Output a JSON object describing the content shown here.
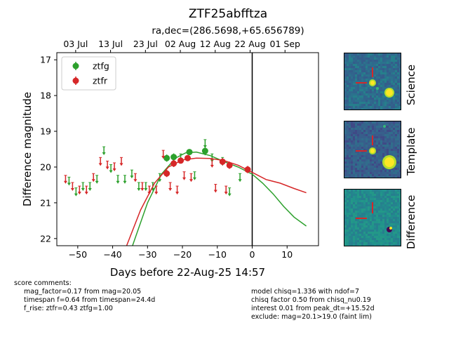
{
  "title": "ZTF25abfftza",
  "subtitle": "ra,dec=(286.5698,+65.656789)",
  "chart_data": {
    "type": "scatter",
    "xlabel": "Days before 22-Aug-25 14:57",
    "ylabel": "Difference magnitude",
    "xlim": [
      -56,
      19
    ],
    "ylim": [
      22.2,
      16.8
    ],
    "y_inverted": true,
    "xticks": [
      -50,
      -40,
      -30,
      -20,
      -10,
      0,
      10
    ],
    "yticks": [
      17,
      18,
      19,
      20,
      21,
      22
    ],
    "top_axis_ticks": [
      {
        "label": "03 Jul",
        "x": -50.6
      },
      {
        "label": "13 Jul",
        "x": -40.6
      },
      {
        "label": "23 Jul",
        "x": -30.6
      },
      {
        "label": "02 Aug",
        "x": -20.6
      },
      {
        "label": "12 Aug",
        "x": -10.6
      },
      {
        "label": "22 Aug",
        "x": -0.6
      },
      {
        "label": "01 Sep",
        "x": 9.4
      }
    ],
    "vline_x": 0,
    "legend": {
      "placement": "top-left",
      "entries": [
        "ztfg",
        "ztfr"
      ]
    },
    "colors": {
      "ztfg": "#2ca02c",
      "ztfr": "#d62728"
    },
    "series": [
      {
        "name": "ztfg",
        "detections": [
          {
            "x": -24.5,
            "y": 19.75,
            "err": 0.1
          },
          {
            "x": -22.5,
            "y": 19.72,
            "err": 0.1
          },
          {
            "x": -18.0,
            "y": 19.58,
            "err": 0.08
          },
          {
            "x": -13.5,
            "y": 19.55,
            "err": 0.12
          }
        ],
        "upper_limits": [
          {
            "x": -52.5,
            "y": 20.4
          },
          {
            "x": -50.5,
            "y": 20.7
          },
          {
            "x": -48.5,
            "y": 20.55
          },
          {
            "x": -46.5,
            "y": 20.55
          },
          {
            "x": -44.5,
            "y": 20.35
          },
          {
            "x": -42.5,
            "y": 19.55
          },
          {
            "x": -40.5,
            "y": 20.05
          },
          {
            "x": -38.5,
            "y": 20.35
          },
          {
            "x": -36.5,
            "y": 20.35
          },
          {
            "x": -34.5,
            "y": 20.2
          },
          {
            "x": -32.5,
            "y": 20.55
          },
          {
            "x": -30.5,
            "y": 20.55
          },
          {
            "x": -28.5,
            "y": 20.55
          },
          {
            "x": -26.5,
            "y": 20.3
          },
          {
            "x": -20.5,
            "y": 19.75
          },
          {
            "x": -16.5,
            "y": 20.25
          },
          {
            "x": -13.5,
            "y": 19.35
          },
          {
            "x": -11.5,
            "y": 19.75
          },
          {
            "x": -8.5,
            "y": 19.85
          },
          {
            "x": -6.5,
            "y": 20.7
          },
          {
            "x": -3.5,
            "y": 20.3
          }
        ],
        "model": [
          [
            -34.3,
            22.2
          ],
          [
            -30,
            21.0
          ],
          [
            -26,
            20.2
          ],
          [
            -22,
            19.75
          ],
          [
            -19,
            19.6
          ],
          [
            -16,
            19.58
          ],
          [
            -12,
            19.68
          ],
          [
            -8,
            19.85
          ],
          [
            -4,
            20.0
          ],
          [
            0,
            20.2
          ],
          [
            3,
            20.45
          ],
          [
            6,
            20.75
          ],
          [
            9,
            21.1
          ],
          [
            12,
            21.4
          ],
          [
            15.5,
            21.65
          ]
        ]
      },
      {
        "name": "ztfr",
        "detections": [
          {
            "x": -24.5,
            "y": 20.18,
            "err": 0.1
          },
          {
            "x": -22.5,
            "y": 19.9,
            "err": 0.1
          },
          {
            "x": -20.5,
            "y": 19.82,
            "err": 0.08
          },
          {
            "x": -18.5,
            "y": 19.75,
            "err": 0.08
          },
          {
            "x": -8.5,
            "y": 19.85,
            "err": 0.1
          },
          {
            "x": -6.5,
            "y": 19.95,
            "err": 0.1
          },
          {
            "x": -1.3,
            "y": 20.07,
            "err": 0.1
          }
        ],
        "upper_limits": [
          {
            "x": -53.5,
            "y": 20.35
          },
          {
            "x": -51.5,
            "y": 20.55
          },
          {
            "x": -49.5,
            "y": 20.65
          },
          {
            "x": -47.5,
            "y": 20.65
          },
          {
            "x": -45.5,
            "y": 20.3
          },
          {
            "x": -43.5,
            "y": 19.85
          },
          {
            "x": -41.5,
            "y": 19.95
          },
          {
            "x": -39.5,
            "y": 20.0
          },
          {
            "x": -37.5,
            "y": 19.85
          },
          {
            "x": -33.5,
            "y": 20.3
          },
          {
            "x": -31.5,
            "y": 20.55
          },
          {
            "x": -29.5,
            "y": 20.65
          },
          {
            "x": -27.5,
            "y": 20.65
          },
          {
            "x": -25.5,
            "y": 19.65
          },
          {
            "x": -23.5,
            "y": 20.55
          },
          {
            "x": -21.5,
            "y": 20.65
          },
          {
            "x": -19.5,
            "y": 20.25
          },
          {
            "x": -17.5,
            "y": 20.3
          },
          {
            "x": -11.5,
            "y": 19.9
          },
          {
            "x": -10.5,
            "y": 20.6
          },
          {
            "x": -7.5,
            "y": 20.65
          }
        ],
        "model": [
          [
            -36,
            22.2
          ],
          [
            -32,
            21.2
          ],
          [
            -28,
            20.45
          ],
          [
            -24,
            20.0
          ],
          [
            -20,
            19.8
          ],
          [
            -16,
            19.75
          ],
          [
            -12,
            19.76
          ],
          [
            -8,
            19.82
          ],
          [
            -4,
            19.95
          ],
          [
            0,
            20.15
          ],
          [
            4,
            20.35
          ],
          [
            8,
            20.45
          ],
          [
            12,
            20.6
          ],
          [
            15.5,
            20.72
          ]
        ]
      }
    ]
  },
  "panels": [
    {
      "label": "Science"
    },
    {
      "label": "Template"
    },
    {
      "label": "Difference"
    }
  ],
  "comments_left": {
    "header": "score comments:",
    "lines": [
      "mag_factor=0.17 from mag=20.05",
      "timespan f=0.64 from timespan=24.4d",
      "f_rise: ztfr=0.43 ztfg=1.00"
    ]
  },
  "comments_right": {
    "lines": [
      "model chisq=1.336 with ndof=7",
      "chisq factor 0.50 from chisq_nu0.19",
      "interest 0.01 from peak_dt=+15.52d",
      "exclude: mag=20.1>19.0 (faint lim)"
    ]
  }
}
